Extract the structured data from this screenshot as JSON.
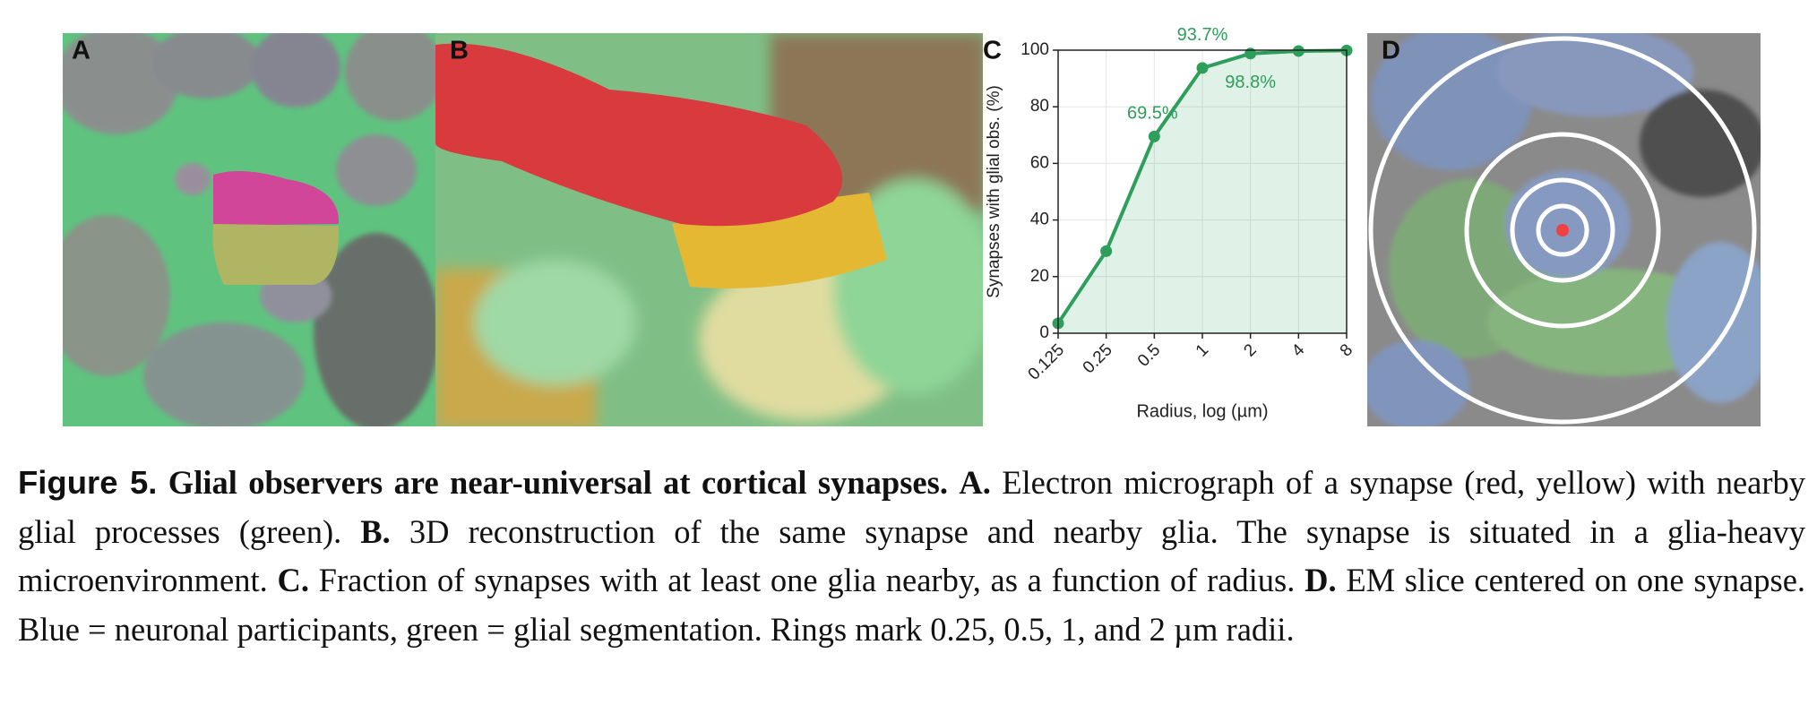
{
  "panel_labels": [
    "A",
    "B",
    "C",
    "D"
  ],
  "chart_data": {
    "type": "line",
    "x": [
      0.125,
      0.25,
      0.5,
      1,
      2,
      4,
      8
    ],
    "values": [
      3.5,
      29,
      69.5,
      93.7,
      98.8,
      99.7,
      99.9
    ],
    "value_labels": [
      null,
      null,
      "69.5%",
      "93.7%",
      "98.8%",
      null,
      null
    ],
    "color": "#2e9e5b",
    "xlabel": "Radius, log (µm)",
    "ylabel": "Synapses with glial obs. (%)",
    "xscale": "log",
    "xlim": [
      0.125,
      8
    ],
    "xticks": [
      0.125,
      0.25,
      0.5,
      1,
      2,
      4,
      8
    ],
    "ylim": [
      0,
      100
    ],
    "yticks": [
      0,
      20,
      40,
      60,
      80,
      100
    ],
    "grid": true,
    "fill": true
  },
  "caption": {
    "label": "Figure 5.",
    "title": "Glial observers are near-universal at cortical synapses.",
    "parts": [
      {
        "label": "A.",
        "text": "Electron micrograph of a synapse (red, yellow) with nearby glial processes (green)."
      },
      {
        "label": "B.",
        "text": "3D reconstruction of the same synapse and nearby glia. The synapse is situated in a glia-heavy microenvironment."
      },
      {
        "label": "C.",
        "text": "Fraction of synapses with at least one glia nearby, as a function of radius."
      },
      {
        "label": "D.",
        "text": "EM slice centered on one synapse. Blue = neuronal participants, green = glial segmentation. Rings mark 0.25, 0.5, 1, and 2 µm radii."
      }
    ]
  }
}
